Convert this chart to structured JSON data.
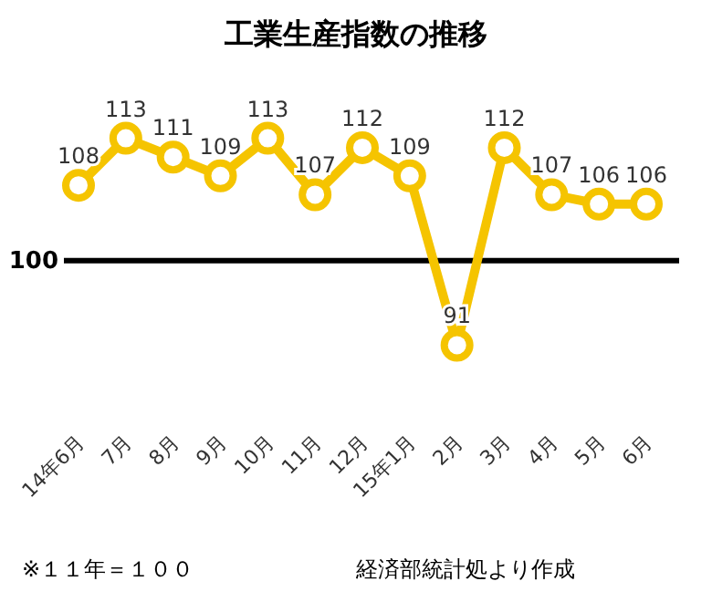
{
  "chart_data": {
    "type": "line",
    "title": "工業生産指数の推移",
    "categories": [
      "14年6月",
      "7月",
      "8月",
      "9月",
      "10月",
      "11月",
      "12月",
      "15年1月",
      "2月",
      "3月",
      "4月",
      "5月",
      "6月"
    ],
    "series": [
      {
        "color": "#f5c400",
        "values": [
          108,
          113,
          111,
          109,
          113,
          107,
          112,
          109,
          91,
          112,
          107,
          106,
          106
        ]
      }
    ],
    "data_labels": true,
    "marker": "circle",
    "line_style": "solid",
    "tick_labels": "x",
    "ref_lines": [
      {
        "axis": "y",
        "value": 100,
        "label": "100",
        "color": "#000000"
      }
    ],
    "annotations": [
      "※１１年＝１００",
      "経済部統計処より作成"
    ]
  }
}
